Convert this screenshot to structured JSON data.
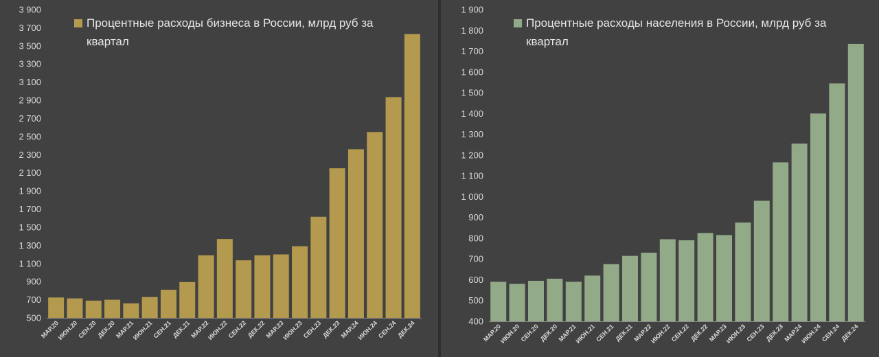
{
  "colors": {
    "background": "#414141",
    "axis": "#8c8c8c",
    "tick_text": "#d9d9d9"
  },
  "chart_data": [
    {
      "type": "bar",
      "legend": {
        "label": "Процентные расходы бизнеса в России, млрд руб за квартал",
        "line1": "Процентные расходы бизнеса в России, млрд руб за",
        "line2": "квартал",
        "position": "top-left"
      },
      "color": "#b49a4e",
      "categories": [
        "МАР.20",
        "ИЮН.20",
        "СЕН.20",
        "ДЕК.20",
        "МАР.21",
        "ИЮН.21",
        "СЕН.21",
        "ДЕК.21",
        "МАР.22",
        "ИЮН.22",
        "СЕН.22",
        "ДЕК.22",
        "МАР.23",
        "ИЮН.23",
        "СЕН.23",
        "ДЕК.23",
        "МАР.24",
        "ИЮН.24",
        "СЕН.24",
        "ДЕК.24"
      ],
      "values": [
        725,
        715,
        690,
        700,
        660,
        730,
        810,
        895,
        1190,
        1370,
        1135,
        1190,
        1200,
        1290,
        1615,
        2150,
        2360,
        2550,
        2935,
        3630
      ],
      "ylim": [
        500,
        3900
      ],
      "yticks": [
        500,
        700,
        900,
        1100,
        1300,
        1500,
        1700,
        1900,
        2100,
        2300,
        2500,
        2700,
        2900,
        3100,
        3300,
        3500,
        3700,
        3900
      ],
      "ytick_labels": [
        "500",
        "700",
        "900",
        "1 100",
        "1 300",
        "1 500",
        "1 700",
        "1 900",
        "2 100",
        "2 300",
        "2 500",
        "2 700",
        "2 900",
        "3 100",
        "3 300",
        "3 500",
        "3 700",
        "3 900"
      ],
      "grid": false
    },
    {
      "type": "bar",
      "legend": {
        "label": "Процентные расходы населения в России, млрд руб за квартал",
        "line1": "Процентные расходы населения в России, млрд руб за",
        "line2": "квартал",
        "position": "top-left"
      },
      "color": "#92aa88",
      "categories": [
        "МАР.20",
        "ИЮН.20",
        "СЕН.20",
        "ДЕК.20",
        "МАР.21",
        "ИЮН.21",
        "СЕН.21",
        "ДЕК.21",
        "МАР.22",
        "ИЮН.22",
        "СЕН.22",
        "ДЕК.22",
        "МАР.23",
        "ИЮН.23",
        "СЕН.23",
        "ДЕК.23",
        "МАР.24",
        "ИЮН.24",
        "СЕН.24",
        "ДЕК.24"
      ],
      "values": [
        590,
        580,
        595,
        605,
        590,
        620,
        675,
        715,
        730,
        795,
        790,
        825,
        815,
        875,
        980,
        1165,
        1255,
        1400,
        1545,
        1735
      ],
      "ylim": [
        400,
        1900
      ],
      "yticks": [
        400,
        500,
        600,
        700,
        800,
        900,
        1000,
        1100,
        1200,
        1300,
        1400,
        1500,
        1600,
        1700,
        1800,
        1900
      ],
      "ytick_labels": [
        "400",
        "500",
        "600",
        "700",
        "800",
        "900",
        "1 000",
        "1 100",
        "1 200",
        "1 300",
        "1 400",
        "1 500",
        "1 600",
        "1 700",
        "1 800",
        "1 900"
      ],
      "grid": false
    }
  ]
}
